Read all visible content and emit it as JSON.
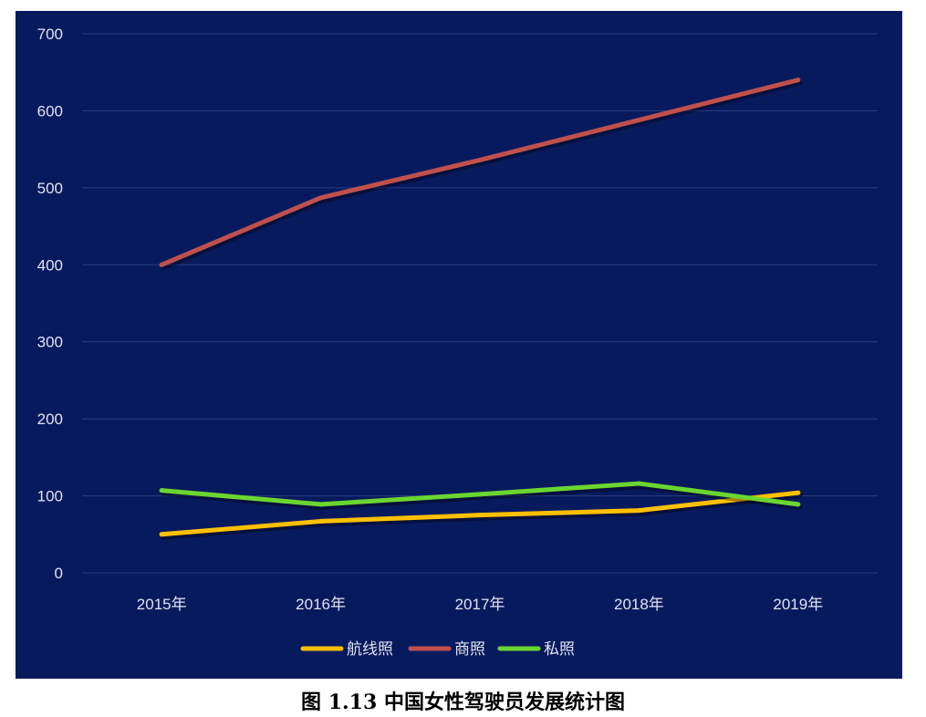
{
  "chart_data": {
    "type": "line",
    "categories": [
      "2015年",
      "2016年",
      "2017年",
      "2018年",
      "2019年"
    ],
    "series": [
      {
        "name": "航线照",
        "color": "#ffc000",
        "values": [
          50,
          67,
          75,
          81,
          104
        ]
      },
      {
        "name": "商照",
        "color": "#c0504d",
        "values": [
          400,
          487,
          536,
          588,
          640
        ]
      },
      {
        "name": "私照",
        "color": "#6cd630",
        "values": [
          107,
          89,
          102,
          116,
          89
        ]
      }
    ],
    "ylim": [
      0,
      700
    ],
    "yticks": [
      "0",
      "100",
      "200",
      "300",
      "400",
      "500",
      "600",
      "700"
    ],
    "grid": true,
    "legend": "bottom",
    "background": "#081a5e"
  },
  "caption": "图 1.13  中国女性驾驶员发展统计图"
}
